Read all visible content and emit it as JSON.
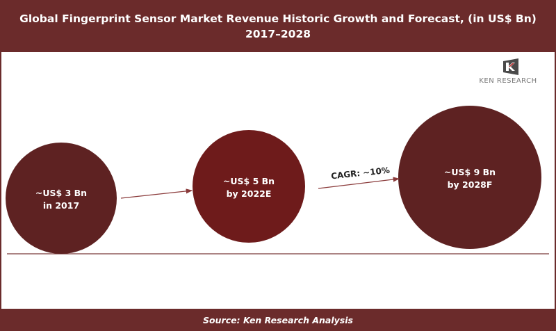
{
  "header": {
    "title_line1": "Global Fingerprint Sensor Market Revenue Historic Growth and Forecast, (in US$ Bn)",
    "title_line2": "2017–2028"
  },
  "logo": {
    "text": "KEN RESEARCH"
  },
  "footer": {
    "source": "Source: Ken Research Analysis"
  },
  "colors": {
    "header_bg": "#6b2b2b",
    "bubble_dark": "#5e2222",
    "bubble_mid": "#6e1b1b",
    "arrow": "#8a3a3a"
  },
  "chart_data": {
    "type": "bubble",
    "points": [
      {
        "year": "2017",
        "value": 3,
        "label_line1": "~US$  3 Bn",
        "label_line2": "in 2017"
      },
      {
        "year": "2022E",
        "value": 5,
        "label_line1": "~US$ 5 Bn",
        "label_line2": "by 2022E"
      },
      {
        "year": "2028F",
        "value": 9,
        "label_line1": "~US$ 9 Bn",
        "label_line2": "by 2028F"
      }
    ],
    "annotations": [
      {
        "text": "CAGR: ~10%"
      }
    ],
    "unit": "US$ Bn"
  }
}
